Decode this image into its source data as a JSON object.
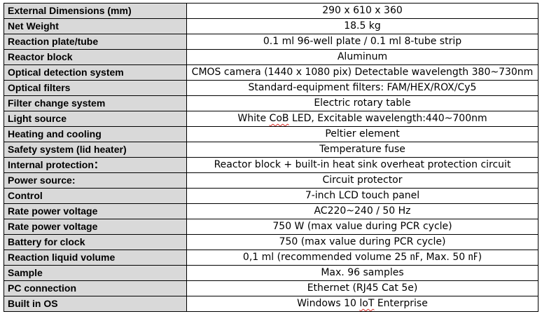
{
  "spec_table": {
    "rows": [
      {
        "label": "External Dimensions (mm)",
        "value": "290 x 610 x 360"
      },
      {
        "label": "Net Weight",
        "value": "18.5 kg"
      },
      {
        "label": "Reaction plate/tube",
        "value": "0.1 ml 96-well plate / 0.1 ml 8-tube strip"
      },
      {
        "label": "Reactor block",
        "value": "Aluminum"
      },
      {
        "label": "Optical detection system",
        "value": "CMOS camera (1440 x 1080 pix) Detectable wavelength 380~730nm"
      },
      {
        "label": "Optical filters",
        "value": "Standard-equipment filters: FAM/HEX/ROX/Cy5"
      },
      {
        "label": "Filter change system",
        "value": "Electric rotary table"
      },
      {
        "label": "Light source",
        "value_parts": [
          "White ",
          "CoB",
          " LED, Excitable wavelength:440~700nm"
        ]
      },
      {
        "label": "Heating and cooling",
        "value": "Peltier element"
      },
      {
        "label": "Safety system (lid heater)",
        "value": "Temperature fuse"
      },
      {
        "label": "Internal protection：",
        "value": "Reactor block + built-in heat sink overheat protection circuit"
      },
      {
        "label": "Power source:",
        "value": "Circuit protector"
      },
      {
        "label": "Control",
        "value": "7-inch LCD touch panel"
      },
      {
        "label": "Rate power voltage",
        "value": "AC220~240 / 50 Hz"
      },
      {
        "label": "Rate power voltage",
        "value": "750 W (max value during PCR cycle)"
      },
      {
        "label": "Battery for clock",
        "value": "750 (max value during PCR cycle)"
      },
      {
        "label": "Reaction liquid volume",
        "value": "0,1 ml (recommended volume 25 ㎋, Max. 50 ㎋)"
      },
      {
        "label": "Sample",
        "value": "Max. 96 samples"
      },
      {
        "label": "PC connection",
        "value": "Ethernet (RJ45 Cat 5e)"
      },
      {
        "label": "Built in OS",
        "value_parts": [
          "Windows 10 ",
          "loT",
          " Enterprise"
        ]
      }
    ]
  }
}
